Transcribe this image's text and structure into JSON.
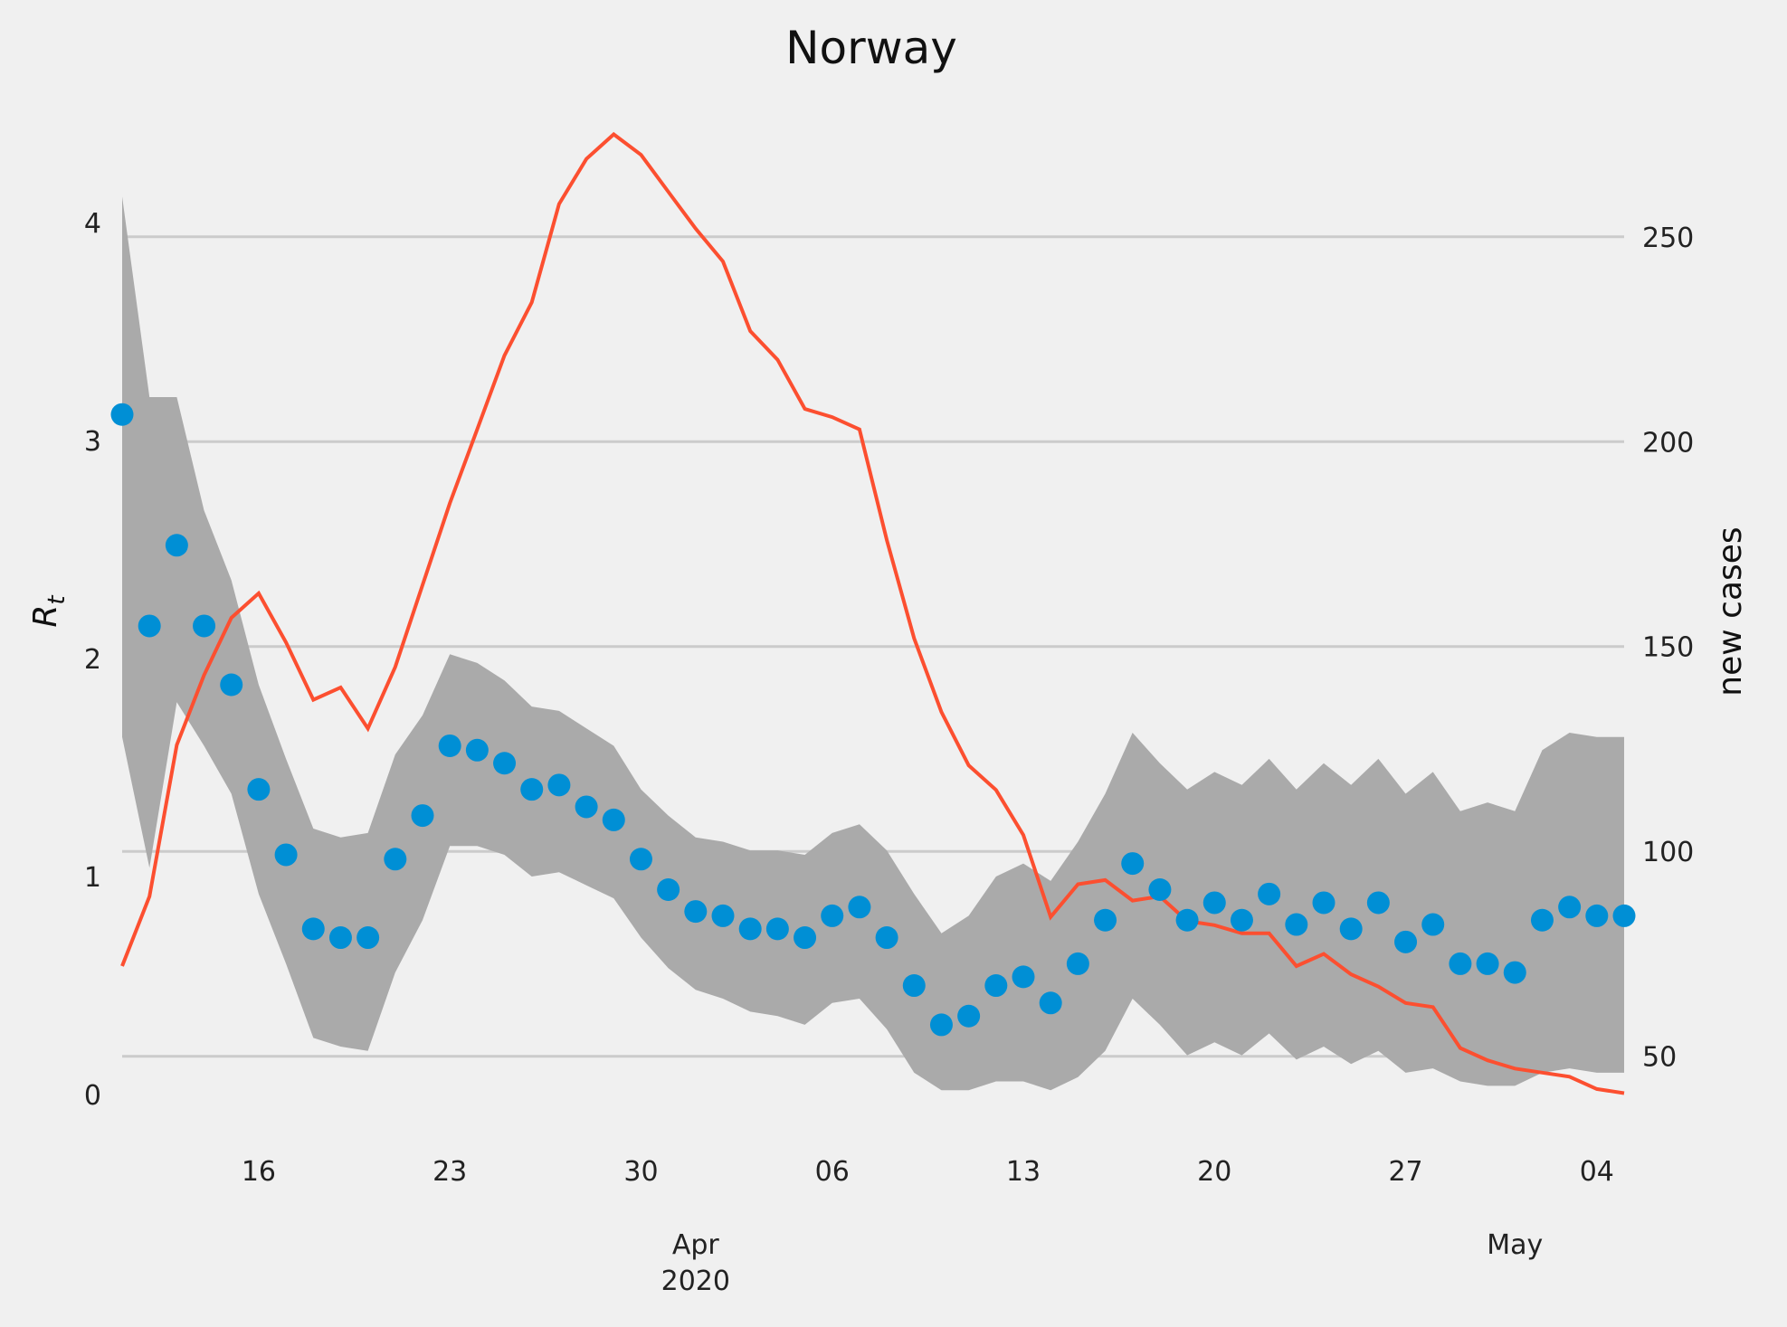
{
  "chart_data": {
    "type": "line",
    "title": "Norway",
    "ylabel_left_base": "R",
    "ylabel_left_sub": "t",
    "ylabel_right": "new cases",
    "ylim_left": [
      0,
      4.2
    ],
    "ylim_right": [
      36,
      277
    ],
    "yticks_left": [
      0,
      1,
      2,
      3,
      4
    ],
    "yticks_right": [
      50,
      100,
      150,
      200,
      250
    ],
    "grid": "horizontal (right axis ticks)",
    "x_start": "2020-03-11",
    "x_end": "2020-05-05",
    "xtick_labels": [
      {
        "date": "2020-03-16",
        "label": "16"
      },
      {
        "date": "2020-03-23",
        "label": "23"
      },
      {
        "date": "2020-03-30",
        "label": "30"
      },
      {
        "date": "2020-04-06",
        "label": "06"
      },
      {
        "date": "2020-04-13",
        "label": "13"
      },
      {
        "date": "2020-04-20",
        "label": "20"
      },
      {
        "date": "2020-04-27",
        "label": "27"
      },
      {
        "date": "2020-05-04",
        "label": "04"
      }
    ],
    "xtick_major": [
      {
        "date": "2020-04-01",
        "label1": "Apr",
        "label2": "2020"
      },
      {
        "date": "2020-05-01",
        "label1": "May",
        "label2": ""
      }
    ],
    "colors": {
      "points": "#008fd5",
      "line": "#fc4f30",
      "band": "#aaaaaa",
      "grid": "#cbcbcb",
      "background": "#f0f0f0"
    },
    "series": [
      {
        "kind": "rt_points",
        "dates": [
          "2020-03-11",
          "2020-03-12",
          "2020-03-13",
          "2020-03-14",
          "2020-03-15",
          "2020-03-16",
          "2020-03-17",
          "2020-03-18",
          "2020-03-19",
          "2020-03-20",
          "2020-03-21",
          "2020-03-22",
          "2020-03-23",
          "2020-03-24",
          "2020-03-25",
          "2020-03-26",
          "2020-03-27",
          "2020-03-28",
          "2020-03-29",
          "2020-03-30",
          "2020-03-31",
          "2020-04-01",
          "2020-04-02",
          "2020-04-03",
          "2020-04-04",
          "2020-04-05",
          "2020-04-06",
          "2020-04-07",
          "2020-04-08",
          "2020-04-09",
          "2020-04-10",
          "2020-04-11",
          "2020-04-12",
          "2020-04-13",
          "2020-04-14",
          "2020-04-15",
          "2020-04-16",
          "2020-04-17",
          "2020-04-18",
          "2020-04-19",
          "2020-04-20",
          "2020-04-21",
          "2020-04-22",
          "2020-04-23",
          "2020-04-24",
          "2020-04-25",
          "2020-04-26",
          "2020-04-27",
          "2020-04-28",
          "2020-04-29",
          "2020-04-30",
          "2020-05-01",
          "2020-05-02",
          "2020-05-03",
          "2020-05-04",
          "2020-05-05"
        ],
        "values": [
          3.12,
          2.15,
          2.52,
          2.15,
          1.88,
          1.4,
          1.1,
          0.76,
          0.72,
          0.72,
          1.08,
          1.28,
          1.6,
          1.58,
          1.52,
          1.4,
          1.42,
          1.32,
          1.26,
          1.08,
          0.94,
          0.84,
          0.82,
          0.76,
          0.76,
          0.72,
          0.82,
          0.86,
          0.72,
          0.5,
          0.32,
          0.36,
          0.5,
          0.54,
          0.42,
          0.6,
          0.8,
          1.06,
          0.94,
          0.8,
          0.88,
          0.8,
          0.92,
          0.78,
          0.88,
          0.76,
          0.88,
          0.7,
          0.78,
          0.6,
          0.6,
          0.56,
          0.8,
          0.86,
          0.82,
          0.82
        ]
      },
      {
        "kind": "rt_band",
        "upper": [
          4.12,
          3.2,
          3.2,
          2.68,
          2.36,
          1.88,
          1.54,
          1.22,
          1.18,
          1.2,
          1.56,
          1.74,
          2.02,
          1.98,
          1.9,
          1.78,
          1.76,
          1.68,
          1.6,
          1.4,
          1.28,
          1.18,
          1.16,
          1.12,
          1.12,
          1.1,
          1.2,
          1.24,
          1.12,
          0.92,
          0.74,
          0.82,
          1.0,
          1.06,
          0.98,
          1.16,
          1.38,
          1.66,
          1.52,
          1.4,
          1.48,
          1.42,
          1.54,
          1.4,
          1.52,
          1.42,
          1.54,
          1.38,
          1.48,
          1.3,
          1.34,
          1.3,
          1.58,
          1.66,
          1.64,
          1.64
        ],
        "lower": [
          1.64,
          1.04,
          1.8,
          1.6,
          1.38,
          0.92,
          0.6,
          0.26,
          0.22,
          0.2,
          0.56,
          0.8,
          1.14,
          1.14,
          1.1,
          1.0,
          1.02,
          0.96,
          0.9,
          0.72,
          0.58,
          0.48,
          0.44,
          0.38,
          0.36,
          0.32,
          0.42,
          0.44,
          0.3,
          0.1,
          0.02,
          0.02,
          0.06,
          0.06,
          0.02,
          0.08,
          0.2,
          0.44,
          0.32,
          0.18,
          0.24,
          0.18,
          0.28,
          0.16,
          0.22,
          0.14,
          0.2,
          0.1,
          0.12,
          0.06,
          0.04,
          0.04,
          0.1,
          0.12,
          0.1,
          0.1
        ]
      },
      {
        "kind": "new_cases_smoothed",
        "axis": "right",
        "dates": [
          "2020-03-11",
          "2020-03-12",
          "2020-03-13",
          "2020-03-14",
          "2020-03-15",
          "2020-03-16",
          "2020-03-17",
          "2020-03-18",
          "2020-03-19",
          "2020-03-20",
          "2020-03-21",
          "2020-03-22",
          "2020-03-23",
          "2020-03-24",
          "2020-03-25",
          "2020-03-26",
          "2020-03-27",
          "2020-03-28",
          "2020-03-29",
          "2020-03-30",
          "2020-03-31",
          "2020-04-01",
          "2020-04-02",
          "2020-04-03",
          "2020-04-04",
          "2020-04-05",
          "2020-04-06",
          "2020-04-07",
          "2020-04-08",
          "2020-04-09",
          "2020-04-10",
          "2020-04-11",
          "2020-04-12",
          "2020-04-13",
          "2020-04-14",
          "2020-04-15",
          "2020-04-16",
          "2020-04-17",
          "2020-04-18",
          "2020-04-19",
          "2020-04-20",
          "2020-04-21",
          "2020-04-22",
          "2020-04-23",
          "2020-04-24",
          "2020-04-25",
          "2020-04-26",
          "2020-04-27",
          "2020-04-28",
          "2020-04-29",
          "2020-04-30",
          "2020-05-01",
          "2020-05-02",
          "2020-05-03",
          "2020-05-04",
          "2020-05-05"
        ],
        "values": [
          72,
          89,
          126,
          143,
          157,
          163,
          151,
          137,
          140,
          130,
          145,
          165,
          185,
          203,
          221,
          234,
          258,
          269,
          275,
          270,
          261,
          252,
          244,
          227,
          220,
          208,
          206,
          203,
          176,
          152,
          134,
          121,
          115,
          104,
          84,
          92,
          93,
          88,
          89,
          83,
          82,
          80,
          80,
          72,
          75,
          70,
          67,
          63,
          62,
          52,
          49,
          47,
          46,
          45,
          42,
          41
        ]
      }
    ]
  }
}
